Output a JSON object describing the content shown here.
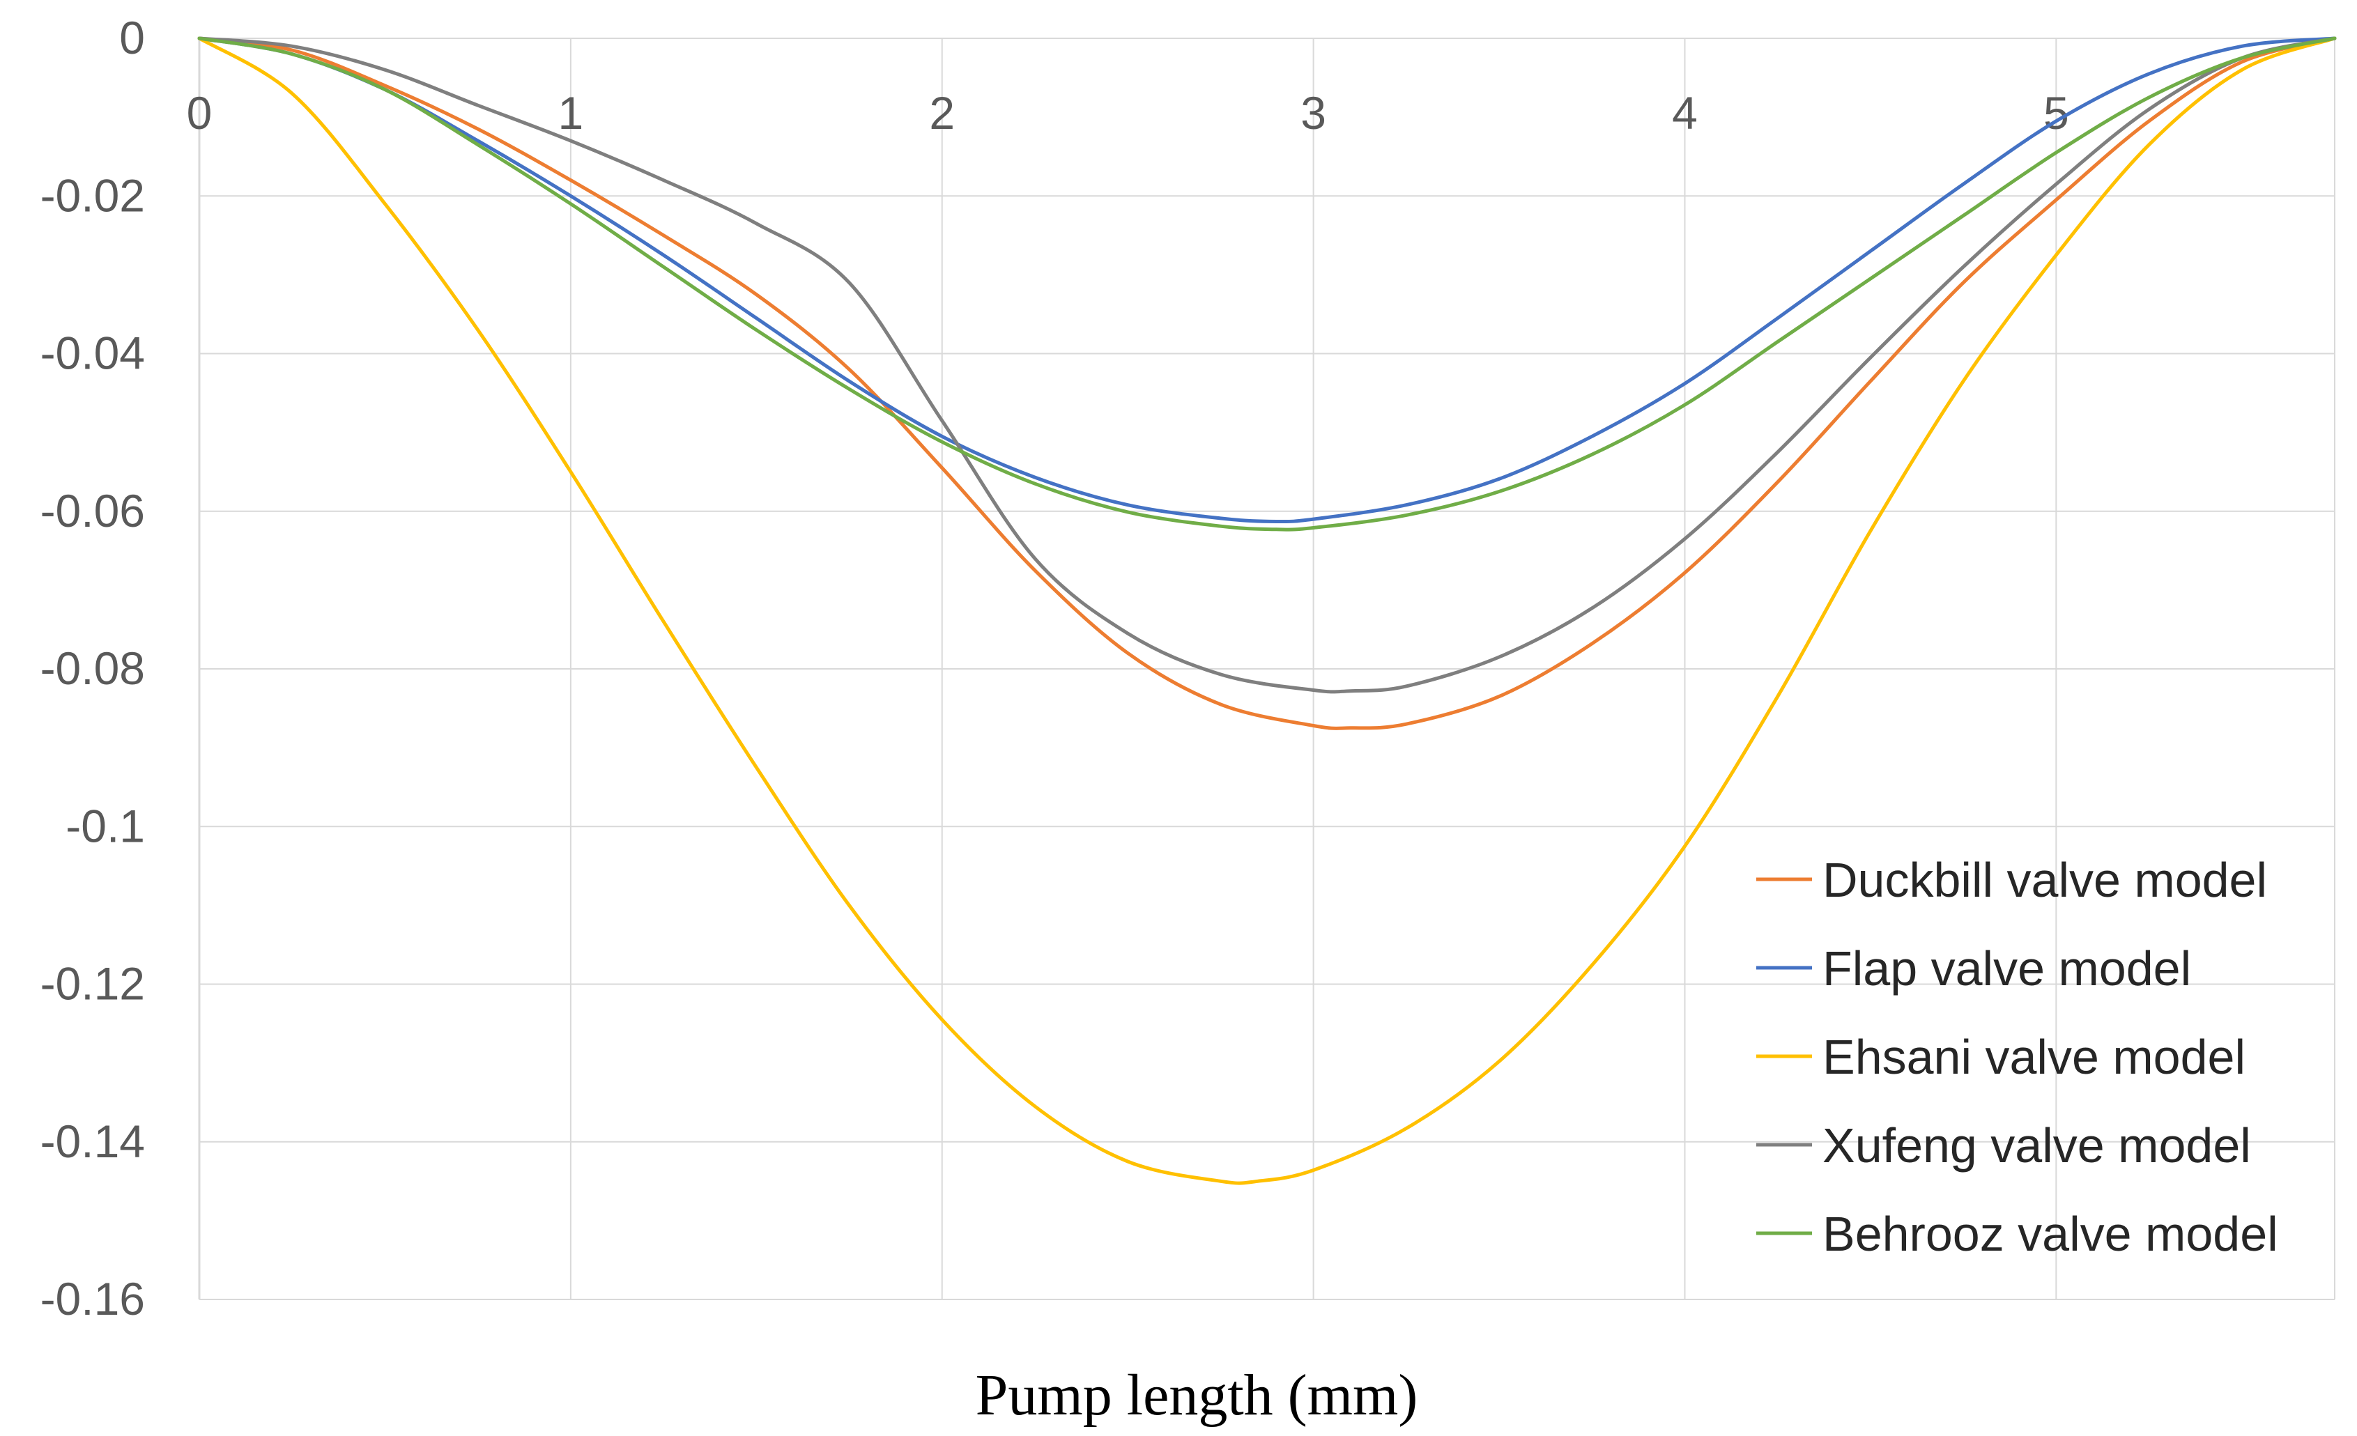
{
  "chart_data": {
    "type": "line",
    "title": "",
    "xlabel": "Pump length (mm)",
    "ylabel": "",
    "xlim": [
      0,
      5.75
    ],
    "ylim": [
      -0.16,
      0
    ],
    "xticks": [
      "0",
      "1",
      "2",
      "3",
      "4",
      "5"
    ],
    "yticks": [
      "0",
      "-0.02",
      "-0.04",
      "-0.06",
      "-0.08",
      "-0.1",
      "-0.12",
      "-0.14",
      "-0.16"
    ],
    "grid": true,
    "legend_position": "bottom-right",
    "series": [
      {
        "name": "Duckbill valve model",
        "color": "#ED7D31",
        "x": [
          0,
          0.25,
          0.5,
          0.75,
          1.0,
          1.25,
          1.5,
          1.75,
          2.0,
          2.25,
          2.5,
          2.75,
          3.0,
          3.1,
          3.25,
          3.5,
          3.75,
          4.0,
          4.25,
          4.5,
          4.75,
          5.0,
          5.25,
          5.5,
          5.75
        ],
        "y": [
          0,
          -0.0015,
          -0.006,
          -0.0115,
          -0.018,
          -0.025,
          -0.0325,
          -0.042,
          -0.0545,
          -0.0675,
          -0.078,
          -0.0845,
          -0.0872,
          -0.0875,
          -0.087,
          -0.0835,
          -0.0768,
          -0.0678,
          -0.0563,
          -0.0435,
          -0.031,
          -0.0205,
          -0.0105,
          -0.003,
          0
        ]
      },
      {
        "name": "Flap valve model",
        "color": "#4472C4",
        "x": [
          0,
          0.25,
          0.5,
          0.75,
          1.0,
          1.25,
          1.5,
          1.75,
          2.0,
          2.25,
          2.5,
          2.75,
          2.9,
          3.0,
          3.25,
          3.5,
          3.75,
          4.0,
          4.25,
          4.5,
          4.75,
          5.0,
          5.25,
          5.5,
          5.75
        ],
        "y": [
          0,
          -0.002,
          -0.0065,
          -0.013,
          -0.02,
          -0.0275,
          -0.0355,
          -0.0435,
          -0.0505,
          -0.0557,
          -0.0592,
          -0.0609,
          -0.0613,
          -0.061,
          -0.0592,
          -0.0559,
          -0.0505,
          -0.0438,
          -0.0355,
          -0.027,
          -0.0185,
          -0.0105,
          -0.0045,
          -0.001,
          0
        ]
      },
      {
        "name": "Ehsani valve model",
        "color": "#FFC000",
        "x": [
          0,
          0.25,
          0.5,
          0.75,
          1.0,
          1.25,
          1.5,
          1.75,
          2.0,
          2.25,
          2.5,
          2.75,
          2.85,
          3.0,
          3.25,
          3.5,
          3.75,
          4.0,
          4.25,
          4.5,
          4.75,
          5.0,
          5.25,
          5.5,
          5.75
        ],
        "y": [
          0,
          -0.007,
          -0.021,
          -0.037,
          -0.055,
          -0.074,
          -0.0925,
          -0.11,
          -0.1245,
          -0.1355,
          -0.1425,
          -0.145,
          -0.145,
          -0.1436,
          -0.1383,
          -0.1298,
          -0.1176,
          -0.1025,
          -0.0835,
          -0.0625,
          -0.0435,
          -0.0275,
          -0.0135,
          -0.004,
          0
        ]
      },
      {
        "name": "Xufeng valve model",
        "color": "#7F7F7F",
        "x": [
          0,
          0.25,
          0.5,
          0.75,
          1.0,
          1.25,
          1.5,
          1.75,
          2.0,
          2.25,
          2.5,
          2.75,
          3.0,
          3.1,
          3.25,
          3.5,
          3.75,
          4.0,
          4.25,
          4.5,
          4.75,
          5.0,
          5.25,
          5.5,
          5.75
        ],
        "y": [
          0,
          -0.001,
          -0.004,
          -0.0085,
          -0.013,
          -0.018,
          -0.0235,
          -0.031,
          -0.0485,
          -0.066,
          -0.0755,
          -0.0807,
          -0.0827,
          -0.0828,
          -0.0822,
          -0.0785,
          -0.0723,
          -0.0635,
          -0.0525,
          -0.0405,
          -0.029,
          -0.0185,
          -0.009,
          -0.0025,
          0
        ]
      },
      {
        "name": "Behrooz valve model",
        "color": "#70AD47",
        "x": [
          0,
          0.25,
          0.5,
          0.75,
          1.0,
          1.25,
          1.5,
          1.75,
          2.0,
          2.25,
          2.5,
          2.75,
          2.9,
          3.0,
          3.25,
          3.5,
          3.75,
          4.0,
          4.25,
          4.5,
          4.75,
          5.0,
          5.25,
          5.5,
          5.75
        ],
        "y": [
          0,
          -0.002,
          -0.0065,
          -0.0135,
          -0.021,
          -0.029,
          -0.037,
          -0.0445,
          -0.0512,
          -0.0565,
          -0.0601,
          -0.0619,
          -0.0623,
          -0.0621,
          -0.0605,
          -0.0575,
          -0.0528,
          -0.0465,
          -0.0385,
          -0.0305,
          -0.0225,
          -0.0145,
          -0.0075,
          -0.0025,
          0
        ]
      }
    ]
  }
}
